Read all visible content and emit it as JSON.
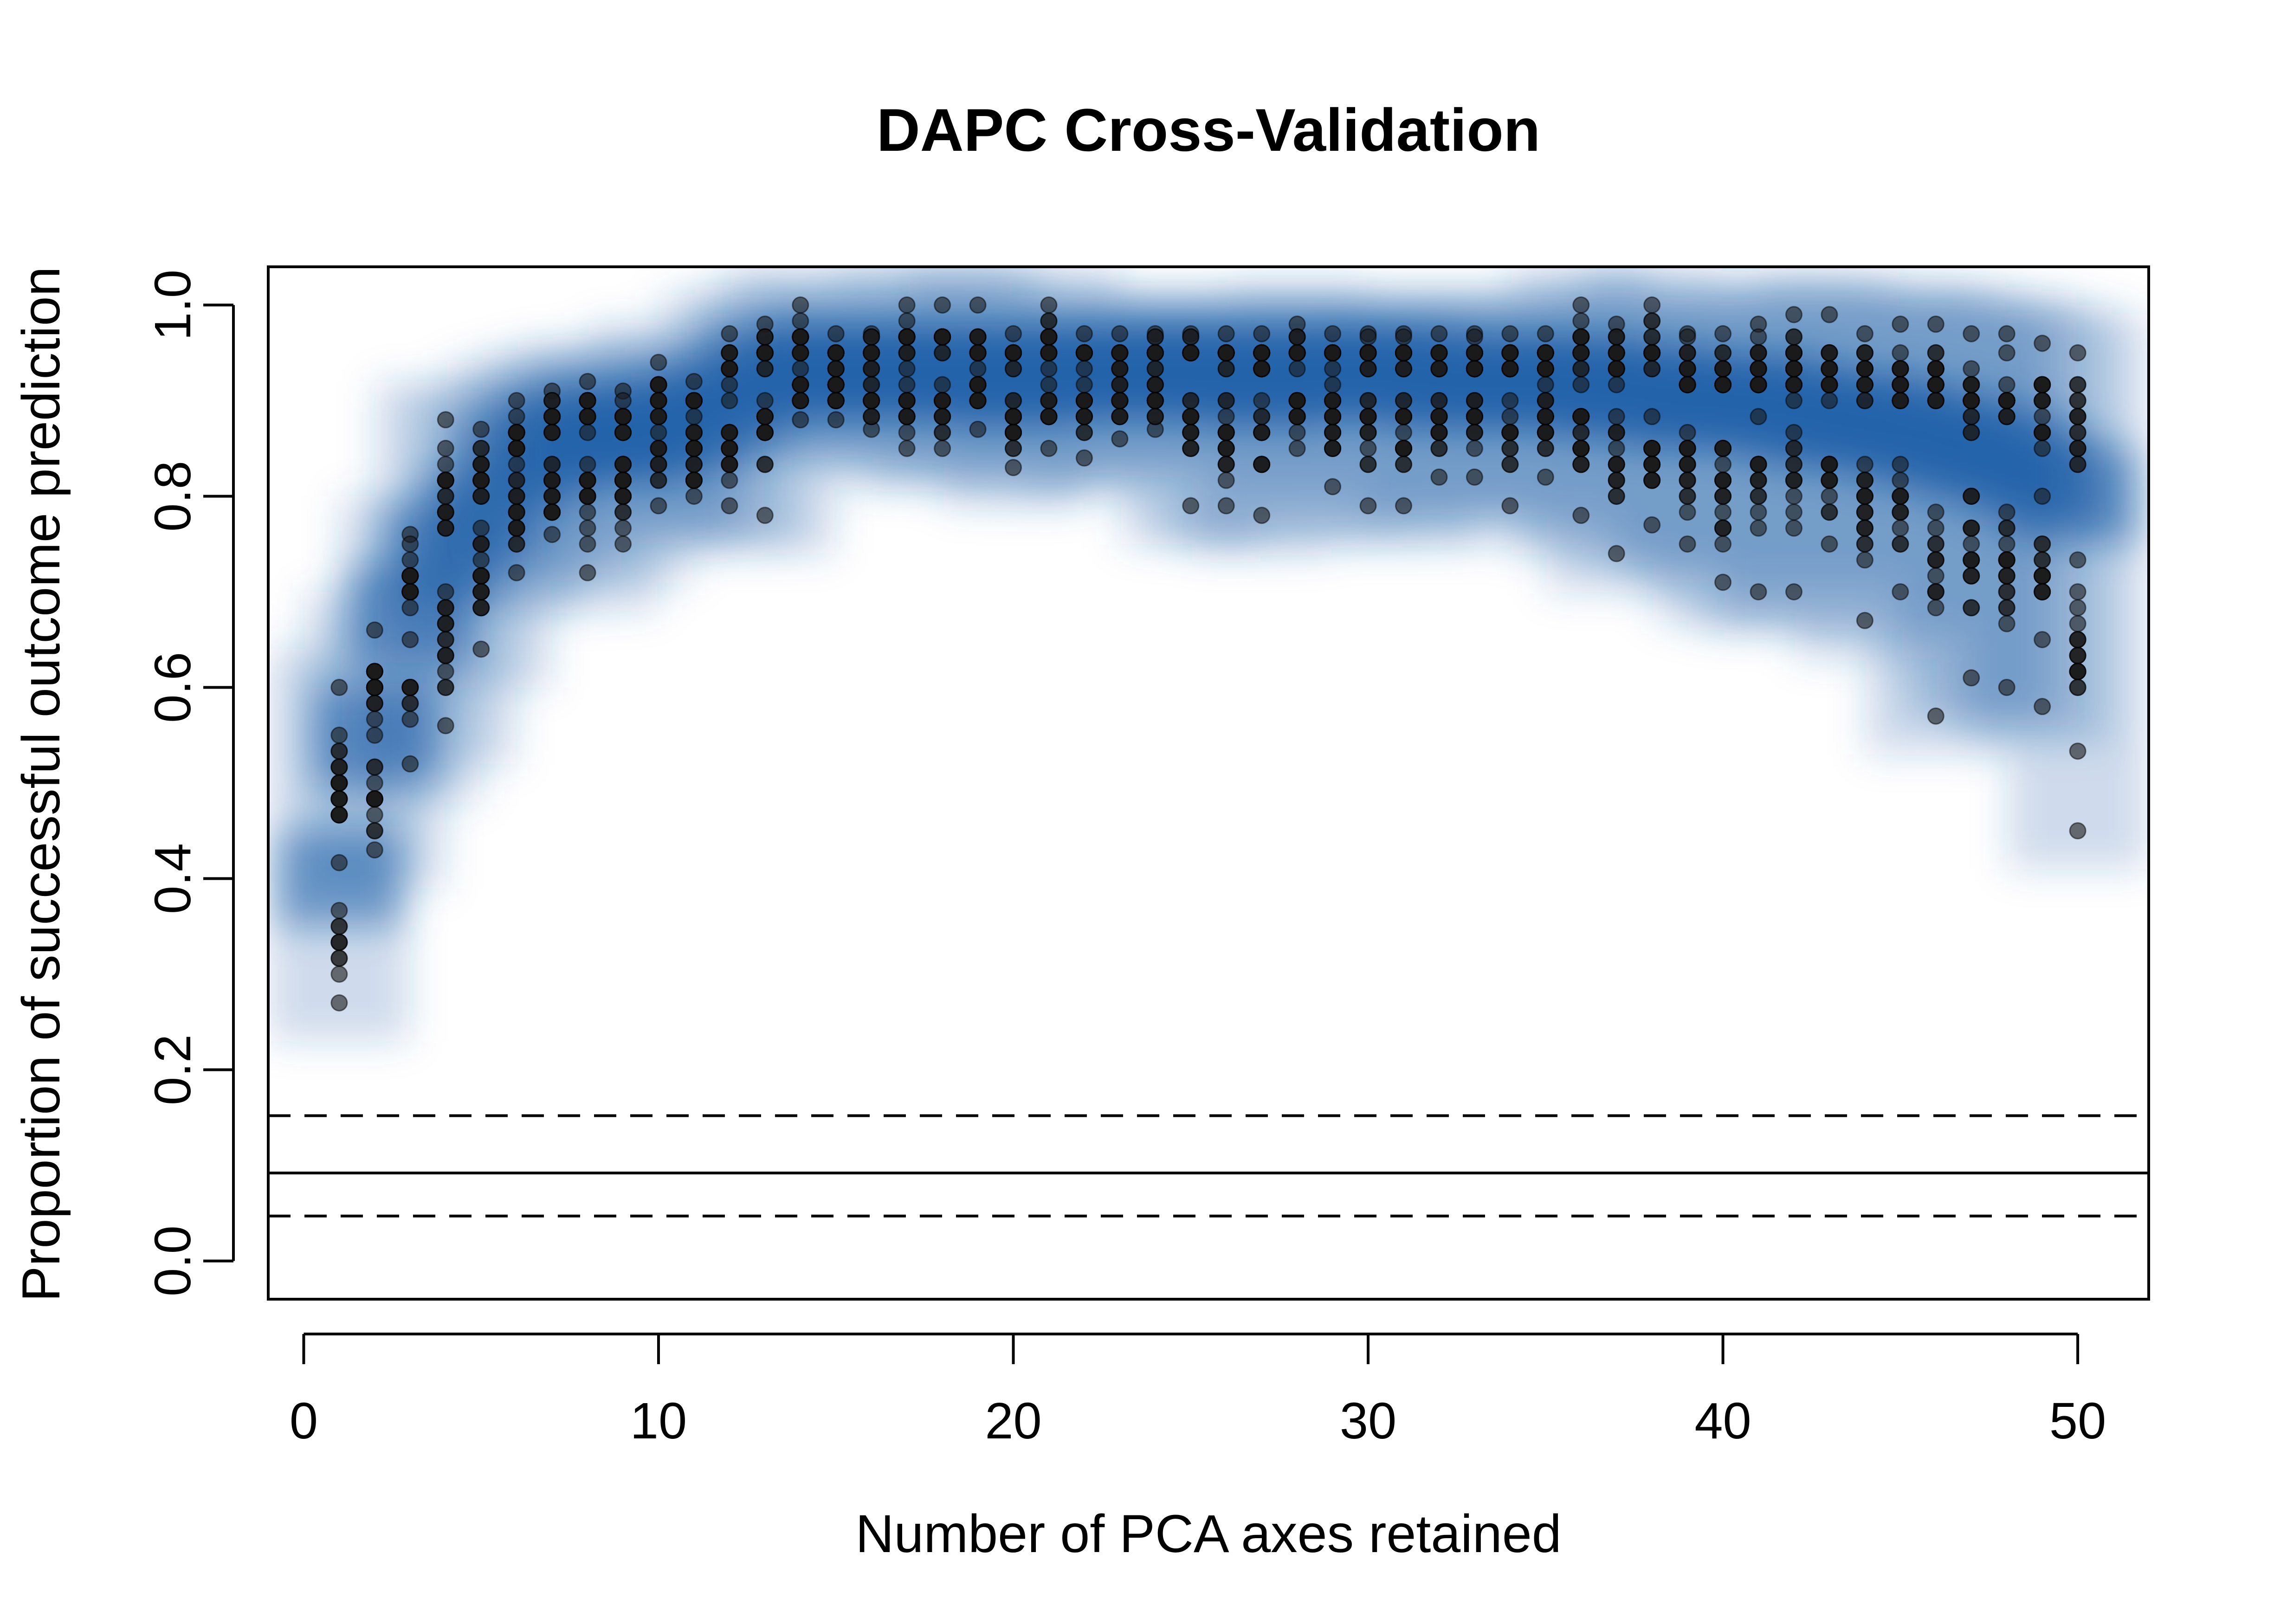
{
  "chart_data": {
    "type": "scatter",
    "title": "DAPC Cross-Validation",
    "xlabel": "Number of PCA axes retained",
    "ylabel": "Proportion of successful outcome prediction",
    "xlim": [
      -1,
      52
    ],
    "ylim": [
      -0.04,
      1.04
    ],
    "x_ticks": [
      0,
      10,
      20,
      30,
      40,
      50
    ],
    "x_tick_labels": [
      "0",
      "10",
      "20",
      "30",
      "40",
      "50"
    ],
    "y_ticks": [
      0.0,
      0.2,
      0.4,
      0.6,
      0.8,
      1.0
    ],
    "y_tick_labels": [
      "0.0",
      "0.2",
      "0.4",
      "0.6",
      "0.8",
      "1.0"
    ],
    "grid": false,
    "legend": "none",
    "point_color": "#1a1a1a",
    "density_color": "#1f5fa8",
    "reference_lines": {
      "mean_random": 0.092,
      "lower_ci": 0.047,
      "upper_ci": 0.152
    },
    "series": [
      {
        "x": [
          1,
          2,
          3,
          4,
          5,
          6,
          7,
          8,
          9,
          10,
          11,
          12,
          13,
          14,
          15,
          16,
          17,
          18,
          19,
          20,
          21,
          22,
          23,
          24,
          25,
          26,
          27,
          28,
          29,
          30,
          31,
          32,
          33,
          34,
          35,
          36,
          37,
          38,
          39,
          40,
          41,
          42,
          43,
          44,
          45,
          46,
          47,
          48,
          49,
          50
        ],
        "min": [
          0.27,
          0.43,
          0.52,
          0.56,
          0.64,
          0.72,
          0.76,
          0.72,
          0.75,
          0.79,
          0.8,
          0.79,
          0.78,
          0.88,
          0.88,
          0.87,
          0.85,
          0.85,
          0.87,
          0.83,
          0.85,
          0.84,
          0.86,
          0.87,
          0.79,
          0.79,
          0.78,
          0.85,
          0.81,
          0.79,
          0.79,
          0.82,
          0.82,
          0.79,
          0.82,
          0.78,
          0.74,
          0.77,
          0.75,
          0.71,
          0.7,
          0.7,
          0.75,
          0.67,
          0.7,
          0.57,
          0.61,
          0.6,
          0.58,
          0.45
        ],
        "max": [
          0.6,
          0.66,
          0.76,
          0.88,
          0.87,
          0.9,
          0.91,
          0.92,
          0.91,
          0.94,
          0.92,
          0.97,
          0.98,
          1.0,
          0.97,
          0.97,
          1.0,
          1.0,
          1.0,
          0.97,
          1.0,
          0.97,
          0.97,
          0.97,
          0.97,
          0.97,
          0.97,
          0.98,
          0.97,
          0.97,
          0.97,
          0.97,
          0.97,
          0.97,
          0.97,
          1.0,
          0.98,
          1.0,
          0.97,
          0.97,
          0.98,
          0.99,
          0.99,
          0.97,
          0.98,
          0.98,
          0.97,
          0.97,
          0.96,
          0.95
        ],
        "center": [
          0.4,
          0.55,
          0.68,
          0.74,
          0.78,
          0.83,
          0.86,
          0.87,
          0.86,
          0.87,
          0.88,
          0.9,
          0.93,
          0.93,
          0.93,
          0.93,
          0.93,
          0.93,
          0.93,
          0.92,
          0.93,
          0.93,
          0.93,
          0.93,
          0.93,
          0.93,
          0.92,
          0.93,
          0.93,
          0.93,
          0.93,
          0.92,
          0.92,
          0.92,
          0.92,
          0.92,
          0.91,
          0.91,
          0.9,
          0.9,
          0.9,
          0.89,
          0.88,
          0.88,
          0.87,
          0.86,
          0.85,
          0.84,
          0.82,
          0.8
        ]
      }
    ]
  }
}
